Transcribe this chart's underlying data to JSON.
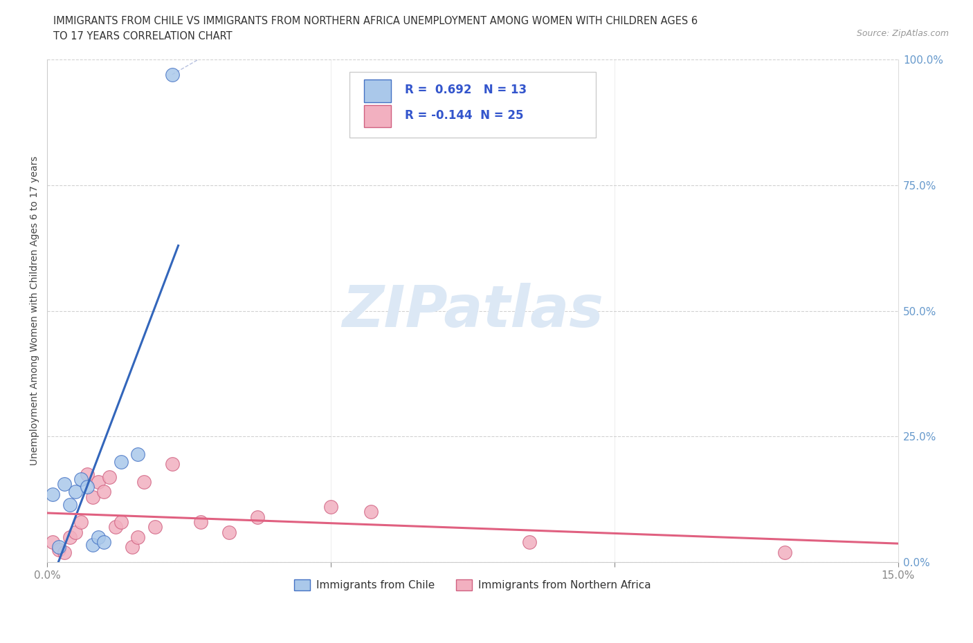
{
  "title_line1": "IMMIGRANTS FROM CHILE VS IMMIGRANTS FROM NORTHERN AFRICA UNEMPLOYMENT AMONG WOMEN WITH CHILDREN AGES 6",
  "title_line2": "TO 17 YEARS CORRELATION CHART",
  "source": "Source: ZipAtlas.com",
  "series1_label": "Immigrants from Chile",
  "series2_label": "Immigrants from Northern Africa",
  "ylabel": "Unemployment Among Women with Children Ages 6 to 17 years",
  "xlim": [
    0.0,
    0.15
  ],
  "ylim": [
    0.0,
    1.0
  ],
  "xticks_major": [
    0.0,
    0.05,
    0.1,
    0.15
  ],
  "xtick_labels_ends": {
    "0.0": "0.0%",
    "0.15": "15.0%"
  },
  "yticks": [
    0.0,
    0.25,
    0.5,
    0.75,
    1.0
  ],
  "ytick_labels": [
    "0.0%",
    "25.0%",
    "50.0%",
    "75.0%",
    "100.0%"
  ],
  "R_chile": 0.692,
  "N_chile": 13,
  "R_nafrica": -0.144,
  "N_nafrica": 25,
  "chile_fill": "#aac8ea",
  "chile_edge": "#4472c4",
  "nafrica_fill": "#f2b0c0",
  "nafrica_edge": "#d06080",
  "chile_line_color": "#3366bb",
  "nafrica_line_color": "#e06080",
  "watermark_text": "ZIPatlas",
  "watermark_color": "#dce8f5",
  "tick_color": "#aaaaaa",
  "grid_color": "#cccccc",
  "right_tick_color": "#6699cc",
  "chile_x": [
    0.001,
    0.002,
    0.003,
    0.004,
    0.005,
    0.006,
    0.007,
    0.008,
    0.009,
    0.01,
    0.013,
    0.016,
    0.022
  ],
  "chile_y": [
    0.135,
    0.03,
    0.155,
    0.115,
    0.14,
    0.165,
    0.15,
    0.035,
    0.05,
    0.04,
    0.2,
    0.215,
    0.97
  ],
  "nafrica_x": [
    0.001,
    0.002,
    0.003,
    0.004,
    0.005,
    0.006,
    0.007,
    0.008,
    0.009,
    0.01,
    0.011,
    0.012,
    0.013,
    0.015,
    0.016,
    0.017,
    0.019,
    0.022,
    0.027,
    0.032,
    0.037,
    0.05,
    0.057,
    0.085,
    0.13
  ],
  "nafrica_y": [
    0.04,
    0.025,
    0.02,
    0.05,
    0.06,
    0.08,
    0.175,
    0.13,
    0.16,
    0.14,
    0.17,
    0.07,
    0.08,
    0.03,
    0.05,
    0.16,
    0.07,
    0.195,
    0.08,
    0.06,
    0.09,
    0.11,
    0.1,
    0.04,
    0.02
  ]
}
